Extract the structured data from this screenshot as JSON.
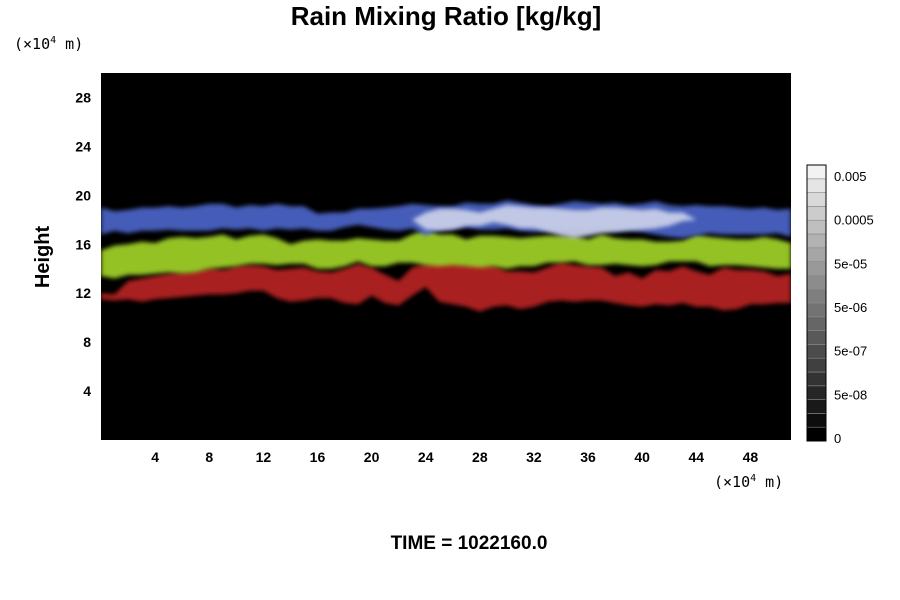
{
  "chart_data": {
    "type": "heatmap",
    "title": "Rain Mixing Ratio [kg/kg]",
    "ylabel": "Height",
    "xlabel": "",
    "x_unit_prefix": "(×10",
    "x_unit_exp": "4",
    "x_unit_suffix": " m)",
    "y_unit_prefix": "(×10",
    "y_unit_exp": "4",
    "y_unit_suffix": " m)",
    "xlim": [
      0,
      51
    ],
    "ylim": [
      0,
      30
    ],
    "x_ticks": [
      "4",
      "8",
      "12",
      "16",
      "20",
      "24",
      "28",
      "32",
      "36",
      "40",
      "44",
      "48"
    ],
    "y_ticks": [
      "4",
      "8",
      "12",
      "16",
      "20",
      "24",
      "28"
    ],
    "background_color": "#000000",
    "colorbar": {
      "labels": [
        "0",
        "5e-08",
        "5e-07",
        "5e-06",
        "5e-05",
        "0.0005",
        "0.005"
      ],
      "levels": 20,
      "min_gray": "#000000",
      "max_gray": "#f2f2f2"
    },
    "layers": [
      {
        "color": "#b22020",
        "y_bottom": [
          11.5,
          11.4,
          11.5,
          11.3,
          11.5,
          11.6,
          11.7,
          11.8,
          11.9,
          11.9,
          12.0,
          12.2,
          12.2,
          11.6,
          11.3,
          11.4,
          11.6,
          11.6,
          11.2,
          11.1,
          11.8,
          11.2,
          11.0,
          11.8,
          12.5,
          11.3,
          11.1,
          10.9,
          10.5,
          10.9,
          11.0,
          10.7,
          10.9,
          11.3,
          11.4,
          11.3,
          11.4,
          11.4,
          11.2,
          11.0,
          10.9,
          11.1,
          11.0,
          11.2,
          10.9,
          10.9,
          10.6,
          10.7,
          11.1,
          11.1,
          11.2,
          11.2
        ],
        "y_top": [
          12.0,
          11.9,
          13.0,
          13.2,
          13.4,
          13.6,
          13.7,
          13.9,
          14.1,
          13.9,
          14.2,
          14.3,
          14.2,
          13.9,
          14.0,
          14.1,
          13.8,
          13.7,
          14.0,
          14.4,
          14.1,
          13.5,
          13.0,
          14.1,
          14.4,
          14.6,
          14.6,
          14.4,
          14.5,
          14.3,
          13.8,
          13.8,
          13.7,
          14.1,
          14.5,
          14.3,
          14.2,
          14.1,
          13.4,
          13.7,
          13.2,
          13.9,
          13.8,
          14.2,
          13.8,
          13.5,
          14.1,
          13.9,
          13.9,
          13.8,
          13.4,
          13.6
        ]
      },
      {
        "color": "#9ccc28",
        "y_bottom": [
          13.4,
          13.2,
          13.5,
          13.5,
          13.6,
          13.7,
          13.6,
          13.7,
          14.0,
          14.1,
          14.2,
          14.4,
          14.4,
          14.3,
          14.4,
          14.4,
          14.0,
          14.0,
          14.2,
          14.6,
          14.2,
          14.2,
          14.5,
          14.5,
          14.3,
          14.2,
          14.3,
          14.2,
          14.1,
          14.2,
          14.0,
          14.2,
          14.2,
          14.5,
          14.5,
          14.6,
          14.3,
          14.3,
          14.4,
          14.3,
          14.2,
          14.3,
          14.6,
          14.6,
          14.6,
          14.2,
          14.3,
          14.3,
          14.2,
          14.1,
          14.0,
          14.0
        ],
        "y_top": [
          15.5,
          15.9,
          16.0,
          16.2,
          16.1,
          16.5,
          16.6,
          16.5,
          16.6,
          16.8,
          16.4,
          16.7,
          16.8,
          16.5,
          16.0,
          16.3,
          16.4,
          16.3,
          16.3,
          16.5,
          16.4,
          16.3,
          16.3,
          16.8,
          17.2,
          16.8,
          16.8,
          16.4,
          16.7,
          16.7,
          16.6,
          16.5,
          16.6,
          16.7,
          16.7,
          16.7,
          16.4,
          16.8,
          16.5,
          16.4,
          16.4,
          16.2,
          16.2,
          16.3,
          16.8,
          16.6,
          16.5,
          16.4,
          16.4,
          16.6,
          16.4,
          16.1
        ]
      },
      {
        "color": "#4a62c2",
        "y_bottom": [
          16.8,
          17.1,
          16.9,
          17.1,
          17.1,
          17.2,
          17.1,
          17.1,
          17.1,
          17.3,
          17.2,
          17.3,
          17.1,
          17.3,
          17.2,
          17.3,
          17.1,
          17.1,
          17.4,
          17.6,
          17.4,
          17.2,
          17.1,
          17.3,
          16.7,
          17.2,
          17.3,
          17.4,
          17.2,
          17.2,
          17.3,
          17.1,
          17.0,
          17.1,
          17.3,
          17.2,
          17.2,
          17.3,
          17.1,
          17.2,
          17.0,
          16.8,
          16.6,
          16.5,
          16.7,
          16.9,
          16.8,
          16.8,
          16.8,
          16.8,
          16.9,
          16.6
        ],
        "y_top": [
          19.0,
          18.7,
          18.8,
          19.0,
          19.0,
          19.1,
          19.0,
          19.1,
          19.3,
          19.3,
          19.0,
          19.2,
          19.1,
          19.3,
          19.1,
          19.1,
          18.5,
          18.6,
          18.6,
          18.9,
          18.9,
          19.0,
          19.1,
          19.3,
          19.2,
          19.1,
          19.1,
          19.4,
          19.3,
          19.3,
          19.6,
          19.4,
          19.2,
          19.1,
          19.3,
          19.5,
          19.4,
          19.3,
          19.4,
          19.2,
          19.3,
          19.5,
          19.2,
          19.1,
          19.2,
          19.1,
          19.1,
          19.0,
          18.9,
          19.0,
          18.8,
          18.9
        ]
      },
      {
        "color": "#c8cee8",
        "y_bottom": [
          18.0,
          18.0,
          18.0,
          18.0,
          18.0,
          18.0,
          18.0,
          18.0,
          18.0,
          18.0,
          18.0,
          18.0,
          18.0,
          18.0,
          18.0,
          18.0,
          18.0,
          18.0,
          18.0,
          18.0,
          18.0,
          18.0,
          18.0,
          18.0,
          17.2,
          17.1,
          17.2,
          17.5,
          17.5,
          17.8,
          17.6,
          17.3,
          17.3,
          17.0,
          16.7,
          16.5,
          16.7,
          16.9,
          17.0,
          17.1,
          17.2,
          17.3,
          17.5,
          17.9,
          18.0,
          18.0,
          18.0,
          18.0,
          18.0,
          18.0,
          18.0,
          18.0
        ],
        "y_top": [
          18.0,
          18.0,
          18.0,
          18.0,
          18.0,
          18.0,
          18.0,
          18.0,
          18.0,
          18.0,
          18.0,
          18.0,
          18.0,
          18.0,
          18.0,
          18.0,
          18.0,
          18.0,
          18.0,
          18.0,
          18.0,
          18.0,
          18.0,
          18.0,
          18.6,
          18.9,
          18.9,
          18.8,
          18.6,
          18.9,
          19.2,
          19.1,
          19.0,
          19.0,
          18.9,
          18.8,
          18.8,
          19.0,
          19.0,
          18.9,
          18.8,
          18.9,
          18.6,
          18.6,
          18.0,
          18.0,
          18.0,
          18.0,
          18.0,
          18.0,
          18.0,
          18.0
        ]
      }
    ]
  },
  "footer": {
    "time_label": "TIME = 1022160.0"
  }
}
